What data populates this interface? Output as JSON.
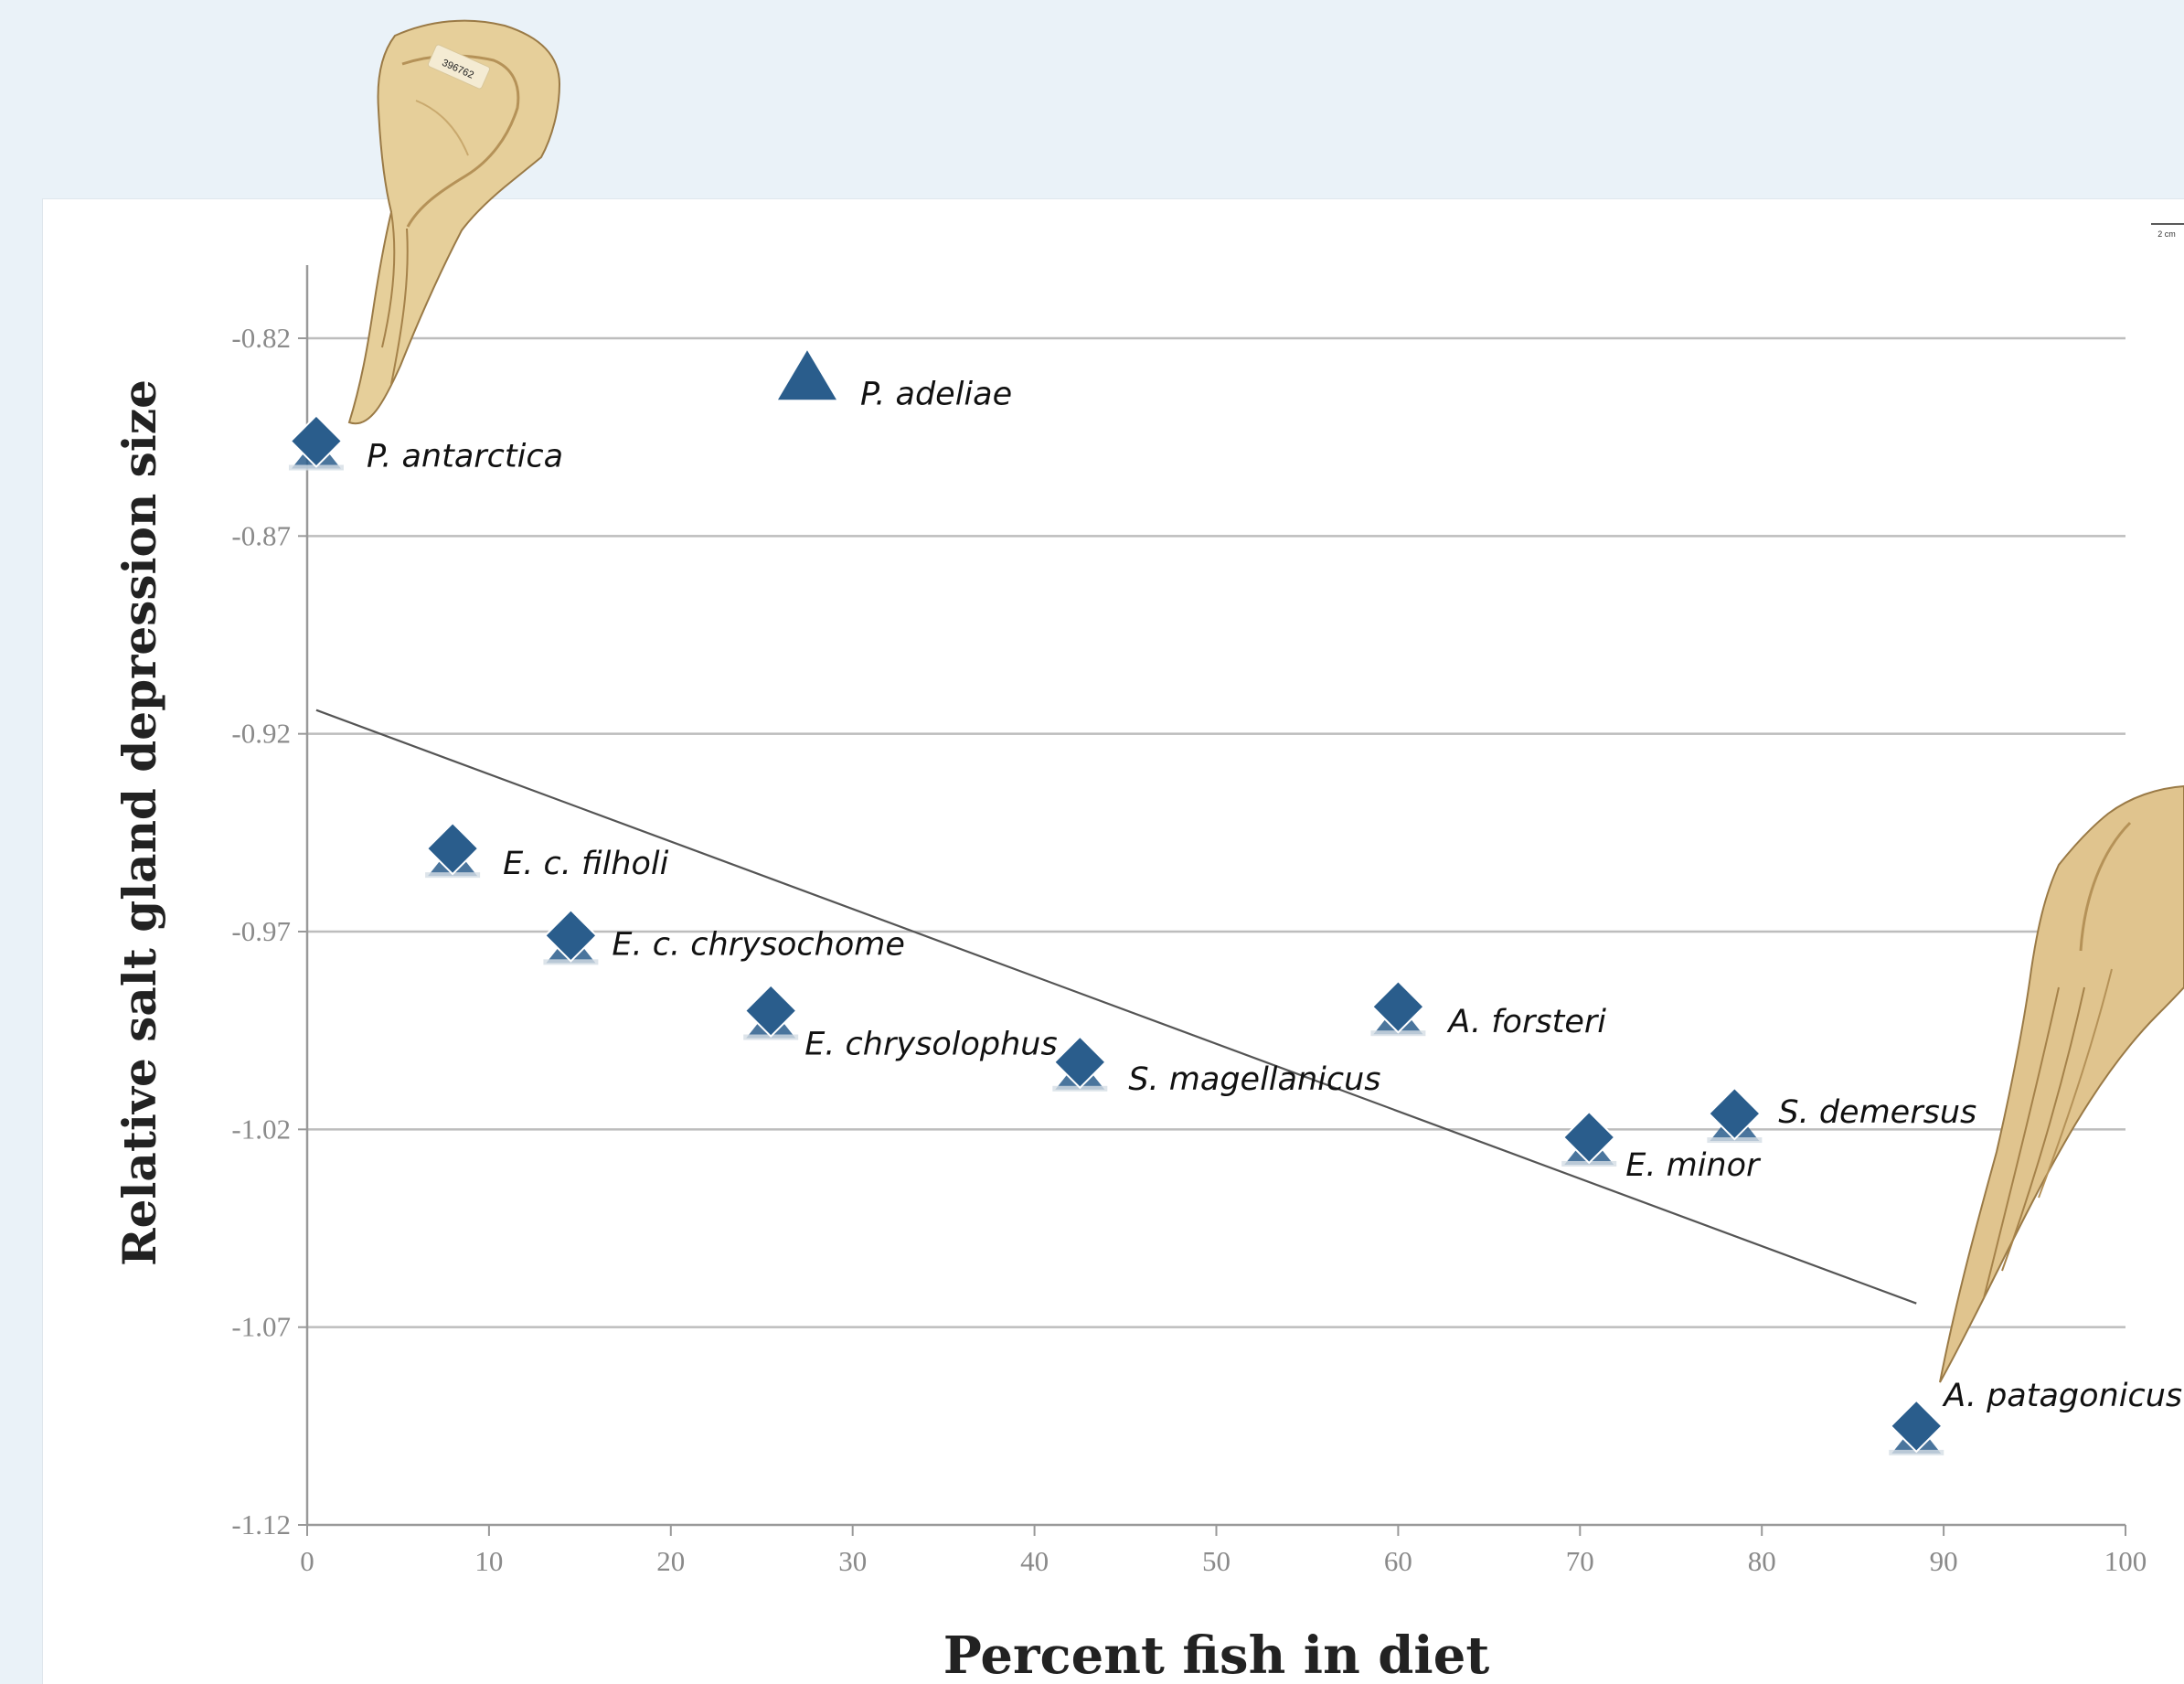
{
  "chart_data": {
    "type": "scatter",
    "title": "",
    "xlabel": "Percent fish in diet",
    "ylabel": "Relative salt gland depression size",
    "xlim": [
      0,
      100
    ],
    "ylim": [
      -1.12,
      -0.805
    ],
    "x_ticks": [
      "0",
      "10",
      "20",
      "30",
      "40",
      "50",
      "60",
      "70",
      "80",
      "90",
      "100"
    ],
    "y_ticks": [
      "-0.82",
      "-0.87",
      "-0.92",
      "-0.97",
      "-1.02",
      "-1.07",
      "-1.12"
    ],
    "grid": true,
    "marker_color": "#2a5d8c",
    "points": [
      {
        "label": "P. antarctica",
        "x": 0.5,
        "y": -0.846,
        "marker": "diamond"
      },
      {
        "label": "P. adeliae",
        "x": 27.5,
        "y": -0.83,
        "marker": "triangle"
      },
      {
        "label": "E. c. filholi",
        "x": 8,
        "y": -0.949,
        "marker": "diamond"
      },
      {
        "label": "E. c. chrysochome",
        "x": 14.5,
        "y": -0.971,
        "marker": "diamond"
      },
      {
        "label": "E. chrysolophus",
        "x": 25.5,
        "y": -0.99,
        "marker": "diamond"
      },
      {
        "label": "S. magellanicus",
        "x": 42.5,
        "y": -1.003,
        "marker": "diamond"
      },
      {
        "label": "A. forsteri",
        "x": 60,
        "y": -0.989,
        "marker": "diamond"
      },
      {
        "label": "S. demersus",
        "x": 78.5,
        "y": -1.016,
        "marker": "diamond"
      },
      {
        "label": "E. minor",
        "x": 70.5,
        "y": -1.022,
        "marker": "diamond"
      },
      {
        "label": "A. patagonicus",
        "x": 88.5,
        "y": -1.095,
        "marker": "diamond"
      }
    ],
    "trendline": {
      "x": [
        0.5,
        88.5
      ],
      "y": [
        -0.914,
        -1.064
      ]
    }
  },
  "illustrations": {
    "top_skull_specimen": "396762",
    "scale_bar_label": "2 cm"
  }
}
